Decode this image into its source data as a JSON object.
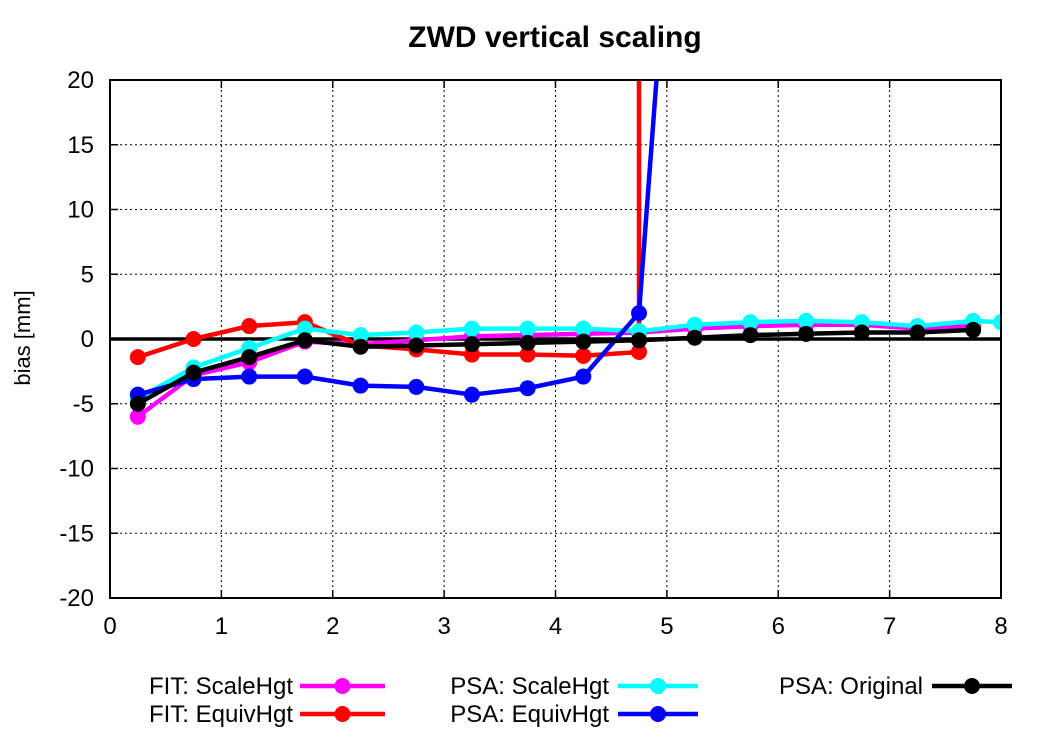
{
  "chart_data": {
    "type": "line",
    "title": "ZWD vertical scaling",
    "xlabel": "",
    "ylabel": "bias [mm]",
    "xlim": [
      0,
      8
    ],
    "ylim": [
      -20,
      20
    ],
    "xticks": [
      0,
      1,
      2,
      3,
      4,
      5,
      6,
      7,
      8
    ],
    "yticks": [
      -20,
      -15,
      -10,
      -5,
      0,
      5,
      10,
      15,
      20
    ],
    "grid": true,
    "zero_line": true,
    "legend_position": "bottom",
    "series": [
      {
        "name": "FIT: ScaleHgt",
        "color": "#ff00ff",
        "x": [
          0.25,
          0.75,
          1.25,
          1.75,
          2.25,
          2.75,
          3.25,
          3.75,
          4.25,
          4.75,
          5.25,
          5.75,
          6.25,
          6.75,
          7.25,
          7.75
        ],
        "y": [
          -6.0,
          -2.8,
          -1.8,
          -0.2,
          -0.4,
          -0.1,
          0.2,
          0.3,
          0.4,
          0.5,
          0.8,
          1.0,
          1.1,
          1.1,
          0.8,
          1.0
        ]
      },
      {
        "name": "FIT: EquivHgt",
        "color": "#ff0000",
        "x": [
          0.25,
          0.75,
          1.25,
          1.75,
          2.25,
          2.75,
          3.25,
          3.75,
          4.25,
          4.75,
          4.75
        ],
        "y": [
          -1.4,
          0.0,
          1.0,
          1.3,
          -0.5,
          -0.8,
          -1.2,
          -1.2,
          -1.3,
          -1.0,
          25
        ]
      },
      {
        "name": "PSA: ScaleHgt",
        "color": "#00ffff",
        "x": [
          0.25,
          0.75,
          1.25,
          1.75,
          2.25,
          2.75,
          3.25,
          3.75,
          4.25,
          4.75,
          5.25,
          5.75,
          6.25,
          6.75,
          7.25,
          7.75,
          8.0
        ],
        "y": [
          -4.6,
          -2.2,
          -0.7,
          0.8,
          0.3,
          0.5,
          0.8,
          0.8,
          0.8,
          0.6,
          1.1,
          1.3,
          1.4,
          1.3,
          1.0,
          1.4,
          1.3
        ]
      },
      {
        "name": "PSA: EquivHgt",
        "color": "#0000ff",
        "x": [
          0.25,
          0.75,
          1.25,
          1.75,
          2.25,
          2.75,
          3.25,
          3.75,
          4.25,
          4.75,
          4.95
        ],
        "y": [
          -4.3,
          -3.1,
          -2.9,
          -2.9,
          -3.6,
          -3.7,
          -4.3,
          -3.8,
          -2.9,
          2.0,
          25
        ]
      },
      {
        "name": "PSA: Original",
        "color": "#000000",
        "x": [
          0.25,
          0.75,
          1.25,
          1.75,
          2.25,
          2.75,
          3.25,
          3.75,
          4.25,
          4.75,
          5.25,
          5.75,
          6.25,
          6.75,
          7.25,
          7.75
        ],
        "y": [
          -5.0,
          -2.6,
          -1.4,
          -0.1,
          -0.6,
          -0.5,
          -0.4,
          -0.3,
          -0.2,
          -0.1,
          0.1,
          0.3,
          0.4,
          0.5,
          0.5,
          0.7
        ]
      }
    ],
    "marker_points": {
      "FIT: EquivHgt": 10,
      "PSA: EquivHgt": 10
    }
  }
}
